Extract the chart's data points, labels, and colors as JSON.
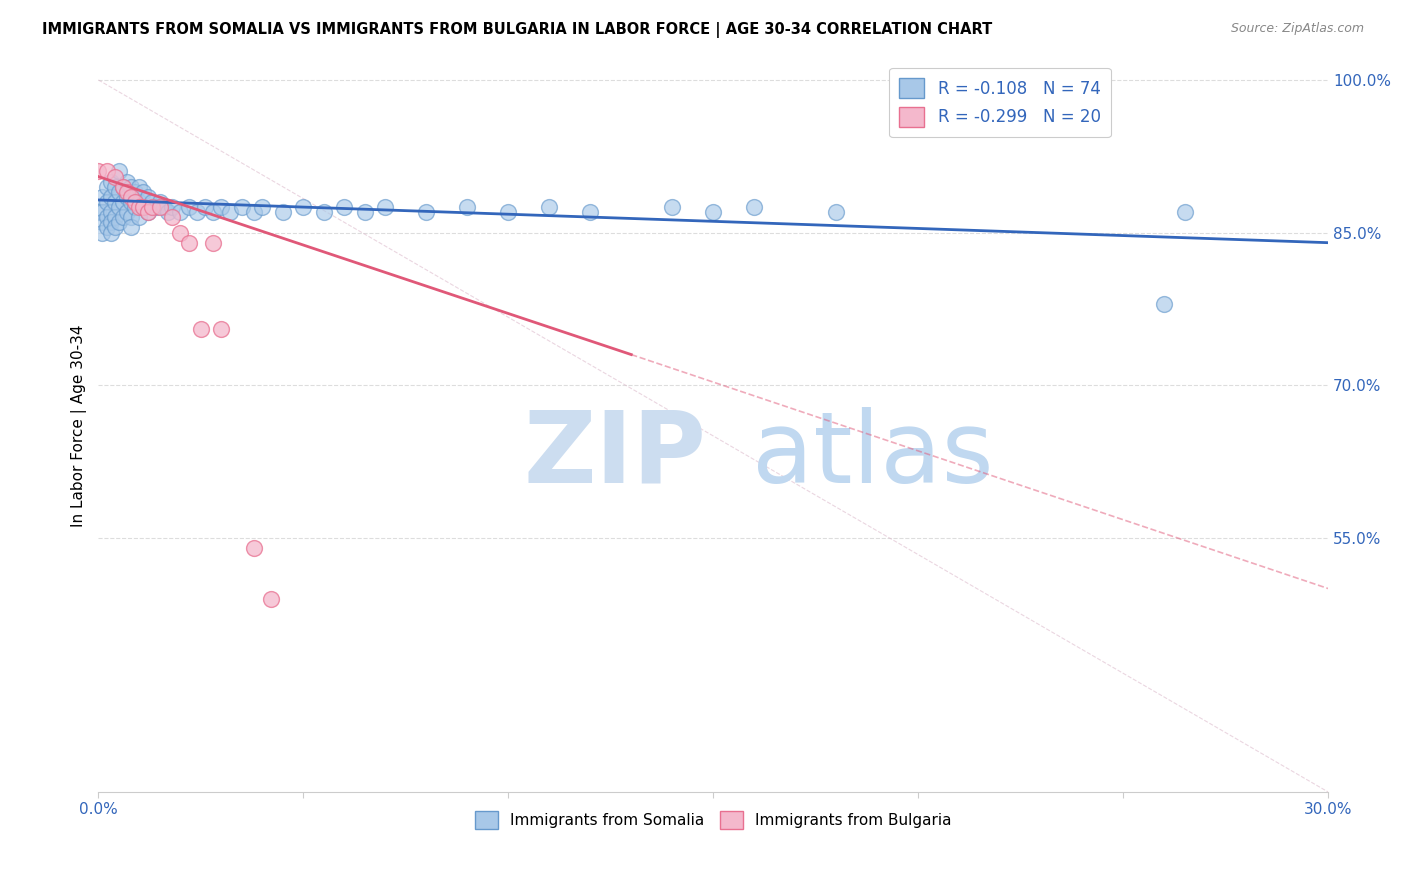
{
  "title": "IMMIGRANTS FROM SOMALIA VS IMMIGRANTS FROM BULGARIA IN LABOR FORCE | AGE 30-34 CORRELATION CHART",
  "source": "Source: ZipAtlas.com",
  "ylabel": "In Labor Force | Age 30-34",
  "xlim": [
    0.0,
    0.3
  ],
  "ylim": [
    0.3,
    1.02
  ],
  "somalia_color": "#a8c8e8",
  "somalia_edge_color": "#6699cc",
  "bulgaria_color": "#f4b8cc",
  "bulgaria_edge_color": "#e87090",
  "trend_somalia_color": "#3366bb",
  "trend_bulgaria_color": "#e05878",
  "diagonal_color": "#ddbbcc",
  "grid_color": "#dddddd",
  "legend_somalia_label": "R = -0.108   N = 74",
  "legend_bulgaria_label": "R = -0.299   N = 20",
  "bottom_legend_somalia": "Immigrants from Somalia",
  "bottom_legend_bulgaria": "Immigrants from Bulgaria",
  "somalia_x": [
    0.0,
    0.001,
    0.001,
    0.001,
    0.001,
    0.002,
    0.002,
    0.002,
    0.002,
    0.003,
    0.003,
    0.003,
    0.003,
    0.003,
    0.004,
    0.004,
    0.004,
    0.004,
    0.005,
    0.005,
    0.005,
    0.005,
    0.006,
    0.006,
    0.006,
    0.007,
    0.007,
    0.007,
    0.008,
    0.008,
    0.008,
    0.008,
    0.009,
    0.009,
    0.01,
    0.01,
    0.01,
    0.011,
    0.011,
    0.012,
    0.012,
    0.013,
    0.014,
    0.015,
    0.016,
    0.017,
    0.018,
    0.02,
    0.022,
    0.024,
    0.026,
    0.028,
    0.03,
    0.032,
    0.035,
    0.038,
    0.04,
    0.045,
    0.05,
    0.055,
    0.06,
    0.065,
    0.07,
    0.08,
    0.09,
    0.1,
    0.11,
    0.12,
    0.14,
    0.15,
    0.16,
    0.18,
    0.26,
    0.265
  ],
  "somalia_y": [
    0.87,
    0.885,
    0.87,
    0.86,
    0.85,
    0.895,
    0.88,
    0.865,
    0.855,
    0.9,
    0.885,
    0.87,
    0.86,
    0.85,
    0.895,
    0.88,
    0.865,
    0.855,
    0.91,
    0.89,
    0.875,
    0.86,
    0.895,
    0.88,
    0.865,
    0.9,
    0.885,
    0.87,
    0.895,
    0.88,
    0.865,
    0.855,
    0.89,
    0.875,
    0.895,
    0.88,
    0.865,
    0.89,
    0.875,
    0.885,
    0.87,
    0.88,
    0.875,
    0.88,
    0.875,
    0.87,
    0.875,
    0.87,
    0.875,
    0.87,
    0.875,
    0.87,
    0.875,
    0.87,
    0.875,
    0.87,
    0.875,
    0.87,
    0.875,
    0.87,
    0.875,
    0.87,
    0.875,
    0.87,
    0.875,
    0.87,
    0.875,
    0.87,
    0.875,
    0.87,
    0.875,
    0.87,
    0.78,
    0.87
  ],
  "bulgaria_x": [
    0.0,
    0.002,
    0.004,
    0.006,
    0.007,
    0.008,
    0.009,
    0.01,
    0.011,
    0.012,
    0.013,
    0.015,
    0.018,
    0.02,
    0.022,
    0.025,
    0.028,
    0.03,
    0.038,
    0.042
  ],
  "bulgaria_y": [
    0.91,
    0.91,
    0.905,
    0.895,
    0.89,
    0.885,
    0.88,
    0.875,
    0.875,
    0.87,
    0.875,
    0.875,
    0.865,
    0.85,
    0.84,
    0.755,
    0.84,
    0.755,
    0.54,
    0.49
  ],
  "trend_somalia_x0": 0.0,
  "trend_somalia_x1": 0.3,
  "trend_somalia_y0": 0.882,
  "trend_somalia_y1": 0.84,
  "trend_bulgaria_solid_x0": 0.0,
  "trend_bulgaria_solid_x1": 0.13,
  "trend_bulgaria_solid_y0": 0.905,
  "trend_bulgaria_solid_y1": 0.73,
  "trend_bulgaria_dash_x0": 0.13,
  "trend_bulgaria_dash_x1": 0.3,
  "trend_bulgaria_dash_y0": 0.73,
  "trend_bulgaria_dash_y1": 0.5,
  "watermark_zip_color": "#ccddf0",
  "watermark_atlas_color": "#c0d8f0"
}
